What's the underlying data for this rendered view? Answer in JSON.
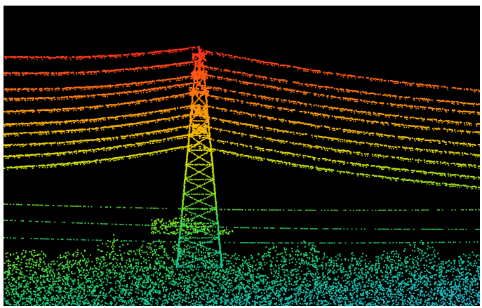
{
  "scene": {
    "background_color": "#000000",
    "frame_color": "#ffffff",
    "colormap": [
      "#ff2a1a",
      "#ff6a10",
      "#ffb000",
      "#d8e000",
      "#7ee21e",
      "#1fd36a",
      "#14c8b4",
      "#2ab5d8"
    ],
    "subject": "transmission-tower-icon"
  }
}
